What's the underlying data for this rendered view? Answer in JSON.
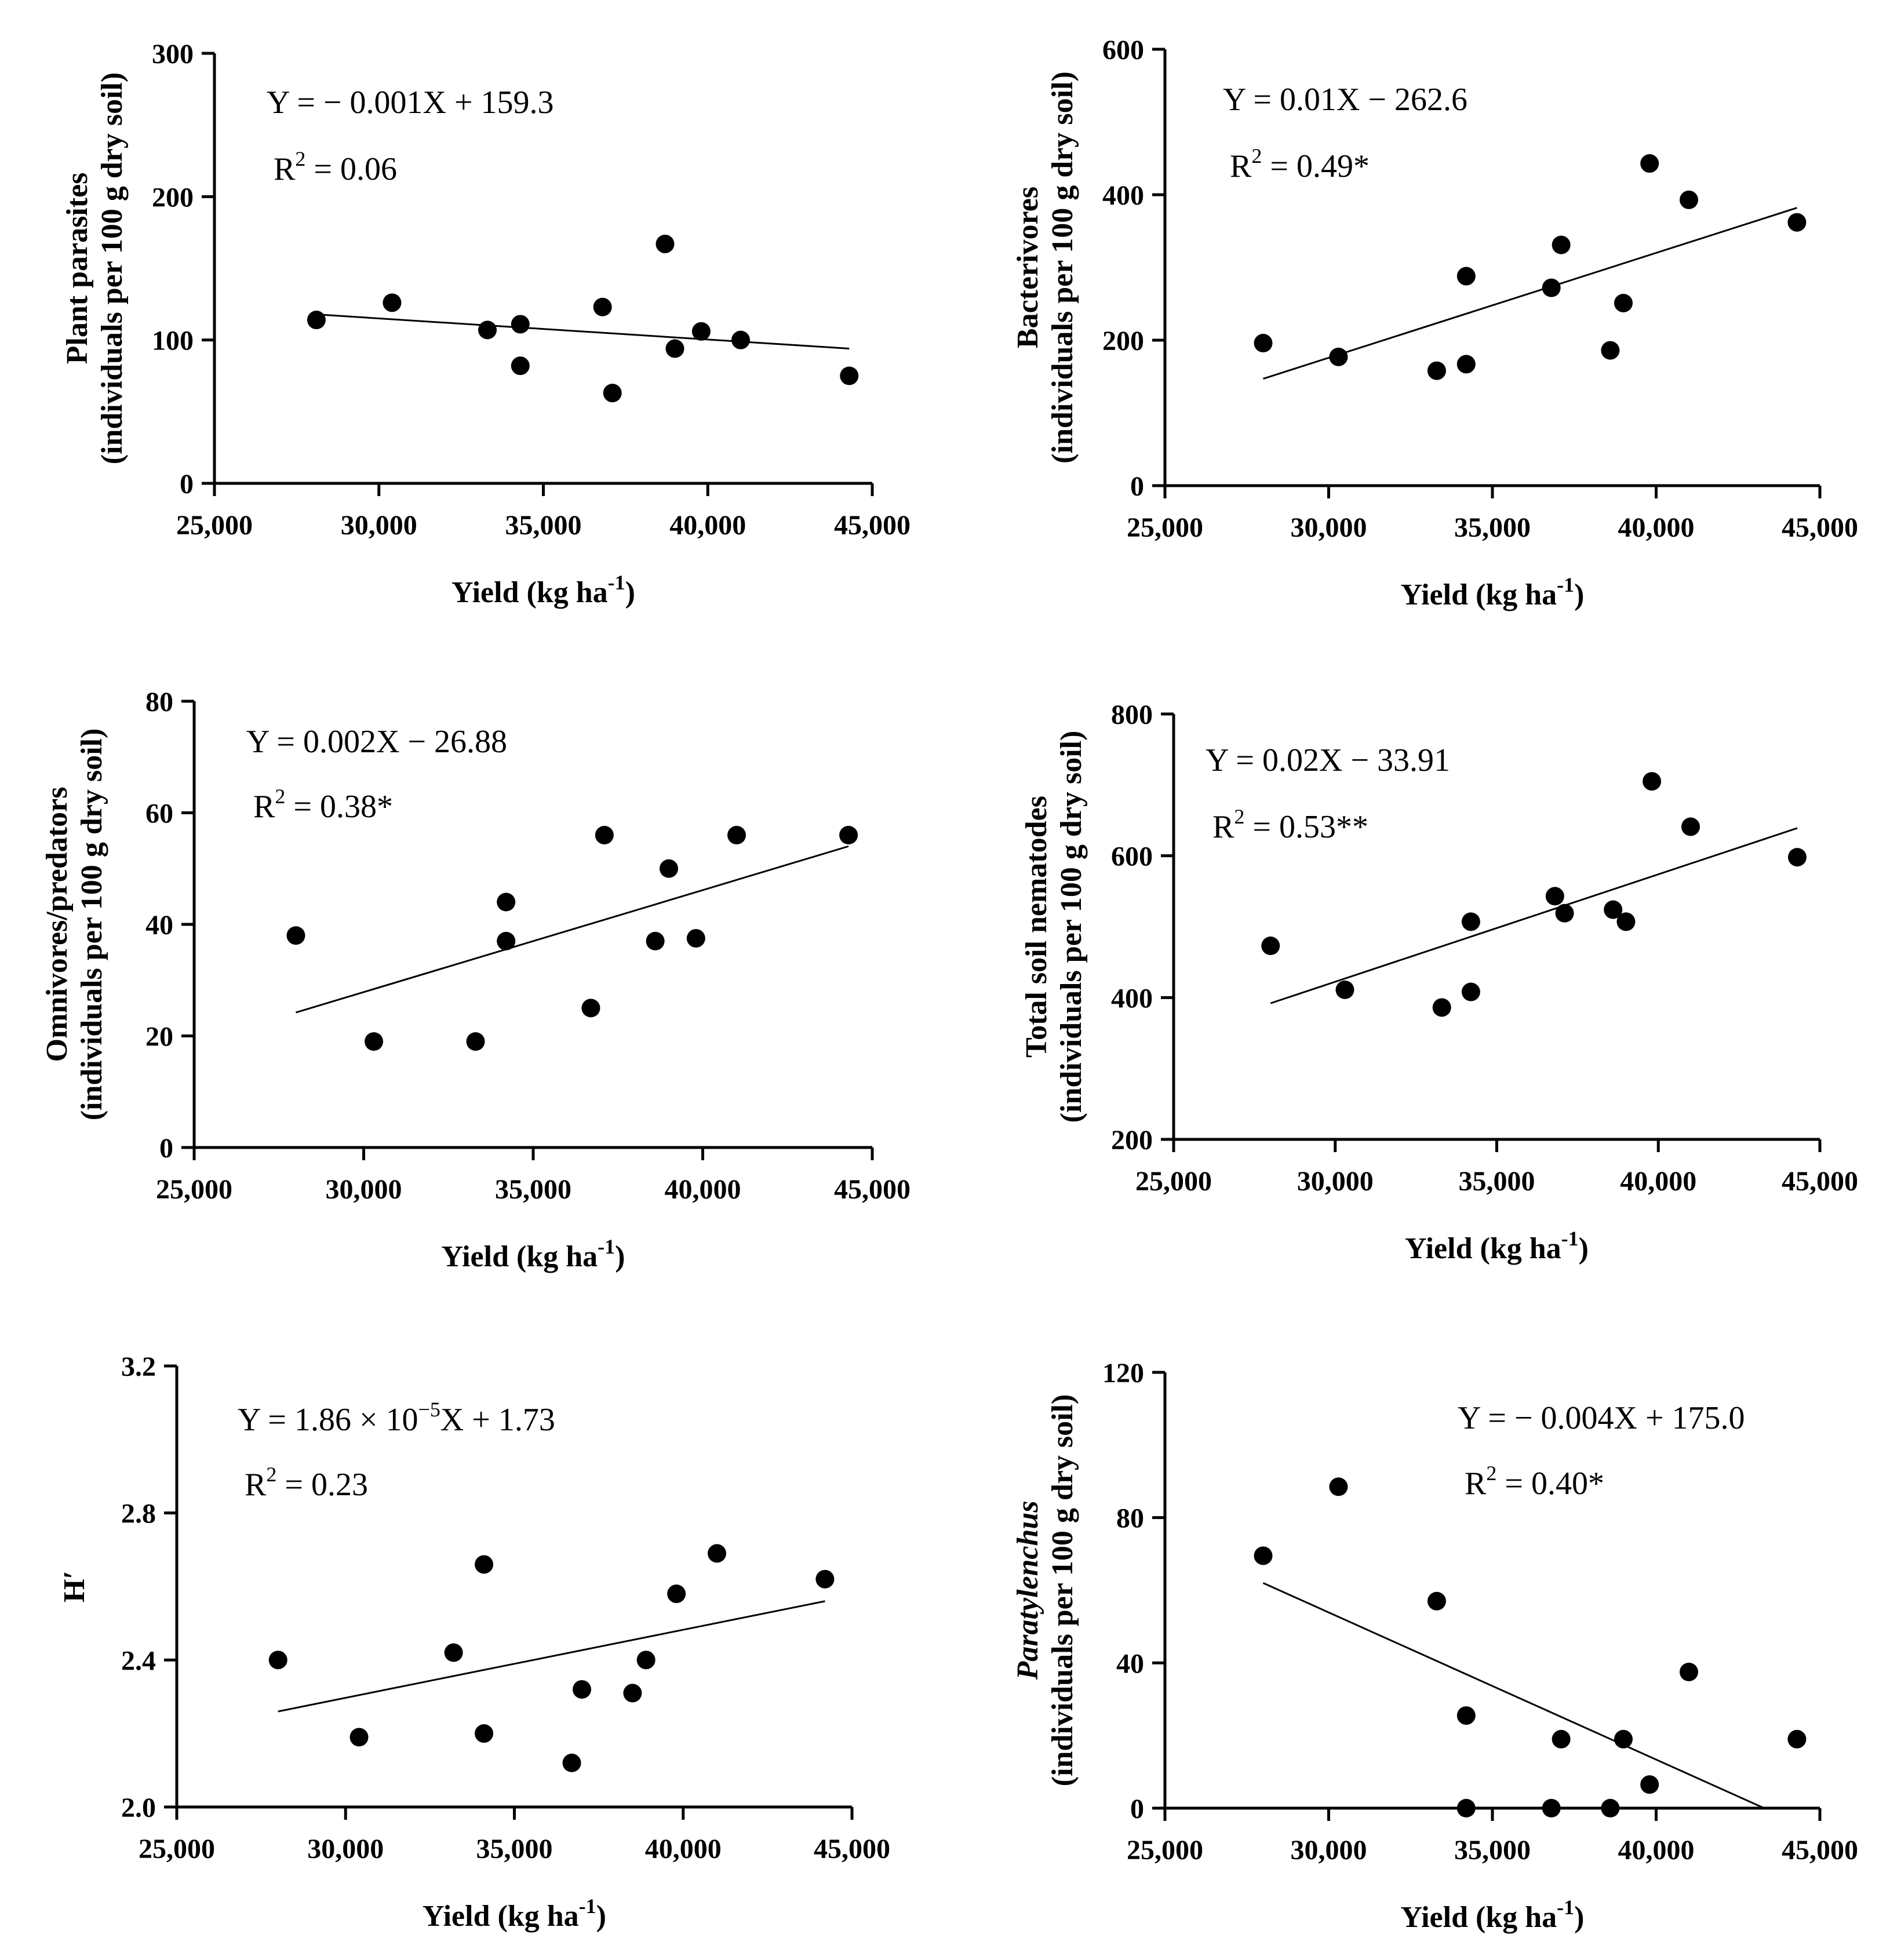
{
  "chart_data": [
    {
      "type": "scatter",
      "ylabel_line1": "Plant  parasites",
      "ylabel_line1_italic": false,
      "ylabel_line2": "(individuals per 100 g dry soil)",
      "xlabel_main": "Yield (kg ha",
      "xlabel_sup": "-1",
      "xlabel_close": ")",
      "xlim": [
        25000,
        45000
      ],
      "ylim": [
        0,
        300
      ],
      "xticks": [
        25000,
        30000,
        35000,
        40000,
        45000
      ],
      "xtick_labels": [
        "25,000",
        "30,000",
        "35,000",
        "40,000",
        "45,000"
      ],
      "yticks": [
        0,
        100,
        200,
        300
      ],
      "ytick_labels": [
        "0",
        "100",
        "200",
        "300"
      ],
      "equation": "Y = − 0.001X + 159.3",
      "r2_label": "R",
      "r2_sup": "2",
      "r2_value": " = 0.06",
      "fit": {
        "x": [
          28000,
          44300
        ],
        "y": [
          118,
          94
        ]
      },
      "x": [
        28100,
        30400,
        33300,
        34300,
        34300,
        36800,
        37100,
        38700,
        39000,
        39800,
        41000,
        44300
      ],
      "y": [
        114,
        126,
        107,
        111,
        82,
        123,
        63,
        167,
        94,
        106,
        100,
        75
      ]
    },
    {
      "type": "scatter",
      "ylabel_line1": "Bacterivores",
      "ylabel_line1_italic": false,
      "ylabel_line2": "(individuals per 100 g dry soil)",
      "xlabel_main": "Yield (kg ha",
      "xlabel_sup": "-1",
      "xlabel_close": ")",
      "xlim": [
        25000,
        45000
      ],
      "ylim": [
        0,
        600
      ],
      "xticks": [
        25000,
        30000,
        35000,
        40000,
        45000
      ],
      "xtick_labels": [
        "25,000",
        "30,000",
        "35,000",
        "40,000",
        "45,000"
      ],
      "yticks": [
        0,
        200,
        400,
        600
      ],
      "ytick_labels": [
        "0",
        "200",
        "400",
        "600"
      ],
      "equation": "Y = 0.01X − 262.6",
      "r2_label": "R",
      "r2_sup": "2",
      "r2_value": " = 0.49*",
      "fit": {
        "x": [
          28000,
          44300
        ],
        "y": [
          147,
          382
        ]
      },
      "x": [
        28000,
        30300,
        33300,
        34200,
        34200,
        36800,
        37100,
        38600,
        39000,
        39800,
        41000,
        44300
      ],
      "y": [
        196,
        177,
        158,
        167,
        288,
        272,
        331,
        186,
        251,
        443,
        393,
        362
      ]
    },
    {
      "type": "scatter",
      "ylabel_line1": "Omnivores/predators",
      "ylabel_line1_italic": false,
      "ylabel_line2": "(individuals per 100 g dry soil)",
      "xlabel_main": "Yield (kg ha",
      "xlabel_sup": "-1",
      "xlabel_close": ")",
      "xlim": [
        25000,
        45000
      ],
      "ylim": [
        0,
        80
      ],
      "xticks": [
        25000,
        30000,
        35000,
        40000,
        45000
      ],
      "xtick_labels": [
        "25,000",
        "30,000",
        "35,000",
        "40,000",
        "45,000"
      ],
      "yticks": [
        0,
        20,
        40,
        60,
        80
      ],
      "ytick_labels": [
        "0",
        "20",
        "40",
        "60",
        "80"
      ],
      "equation": "Y = 0.002X − 26.88",
      "r2_label": "R",
      "r2_sup": "2",
      "r2_value": " = 0.38*",
      "fit": {
        "x": [
          28000,
          44300
        ],
        "y": [
          24.2,
          54.0
        ]
      },
      "x": [
        28000,
        30300,
        33300,
        34200,
        34200,
        36700,
        37100,
        38600,
        39000,
        39800,
        41000,
        44300
      ],
      "y": [
        38,
        19,
        19,
        44,
        37,
        25,
        56,
        37,
        50,
        37.5,
        56,
        56
      ]
    },
    {
      "type": "scatter",
      "ylabel_line1": "Total soil nematodes",
      "ylabel_line1_italic": false,
      "ylabel_line2": "(individuals per 100 g dry soil)",
      "xlabel_main": "Yield (kg ha",
      "xlabel_sup": "-1",
      "xlabel_close": ")",
      "xlim": [
        25000,
        45000
      ],
      "ylim": [
        200,
        800
      ],
      "xticks": [
        25000,
        30000,
        35000,
        40000,
        45000
      ],
      "xtick_labels": [
        "25,000",
        "30,000",
        "35,000",
        "40,000",
        "45,000"
      ],
      "yticks": [
        200,
        400,
        600,
        800
      ],
      "ytick_labels": [
        "200",
        "400",
        "600",
        "800"
      ],
      "equation": "Y = 0.02X − 33.91",
      "r2_label": "R",
      "r2_sup": "2",
      "r2_value": " = 0.53**",
      "fit": {
        "x": [
          28000,
          44300
        ],
        "y": [
          392,
          639
        ]
      },
      "x": [
        28000,
        30300,
        33300,
        34200,
        34200,
        36800,
        37100,
        38600,
        39000,
        39800,
        41000,
        44300
      ],
      "y": [
        473,
        411,
        386,
        408,
        507,
        543,
        519,
        524,
        507,
        705,
        641,
        598
      ]
    },
    {
      "type": "scatter",
      "ylabel_line1": "H′",
      "ylabel_line1_italic": false,
      "ylabel_line2": "",
      "xlabel_main": "Yield (kg ha",
      "xlabel_sup": "-1",
      "xlabel_close": ")",
      "xlim": [
        25000,
        45000
      ],
      "ylim": [
        2.0,
        3.2
      ],
      "xticks": [
        25000,
        30000,
        35000,
        40000,
        45000
      ],
      "xtick_labels": [
        "25,000",
        "30,000",
        "35,000",
        "40,000",
        "45,000"
      ],
      "yticks": [
        2.0,
        2.4,
        2.8,
        3.2
      ],
      "ytick_labels": [
        "2.0",
        "2.4",
        "2.8",
        "3.2"
      ],
      "equation": "Y = 1.86 × 10",
      "equation_sup": "−5",
      "equation_tail": "X + 1.73",
      "r2_label": "R",
      "r2_sup": "2",
      "r2_value": " = 0.23",
      "fit": {
        "x": [
          28000,
          44200
        ],
        "y": [
          2.26,
          2.56
        ]
      },
      "x": [
        28000,
        30400,
        33200,
        34100,
        34100,
        36700,
        37000,
        38500,
        38900,
        39800,
        41000,
        44200
      ],
      "y": [
        2.4,
        2.19,
        2.42,
        2.66,
        2.2,
        2.12,
        2.32,
        2.31,
        2.4,
        2.58,
        2.69,
        2.62
      ]
    },
    {
      "type": "scatter",
      "ylabel_line1": "Paratylenchus",
      "ylabel_line1_italic": true,
      "ylabel_line2": "(individuals per 100 g dry soil)",
      "xlabel_main": "Yield (kg ha",
      "xlabel_sup": "-1",
      "xlabel_close": ")",
      "xlim": [
        25000,
        45000
      ],
      "ylim": [
        0,
        120
      ],
      "xticks": [
        25000,
        30000,
        35000,
        40000,
        45000
      ],
      "xtick_labels": [
        "25,000",
        "30,000",
        "35,000",
        "40,000",
        "45,000"
      ],
      "yticks": [
        0,
        40,
        80,
        120
      ],
      "ytick_labels": [
        "0",
        "40",
        "80",
        "120"
      ],
      "equation": "Y = − 0.004X + 175.0",
      "r2_label": "R",
      "r2_sup": "2",
      "r2_value": " = 0.40*",
      "fit": {
        "x": [
          28000,
          43300
        ],
        "y": [
          62,
          0
        ]
      },
      "x": [
        28000,
        30300,
        33300,
        34200,
        34200,
        36800,
        37100,
        38600,
        39000,
        39800,
        41000,
        44300
      ],
      "y": [
        69.5,
        88.5,
        57,
        25.5,
        0,
        0,
        19,
        0,
        19,
        6.5,
        37.5,
        19
      ]
    }
  ]
}
